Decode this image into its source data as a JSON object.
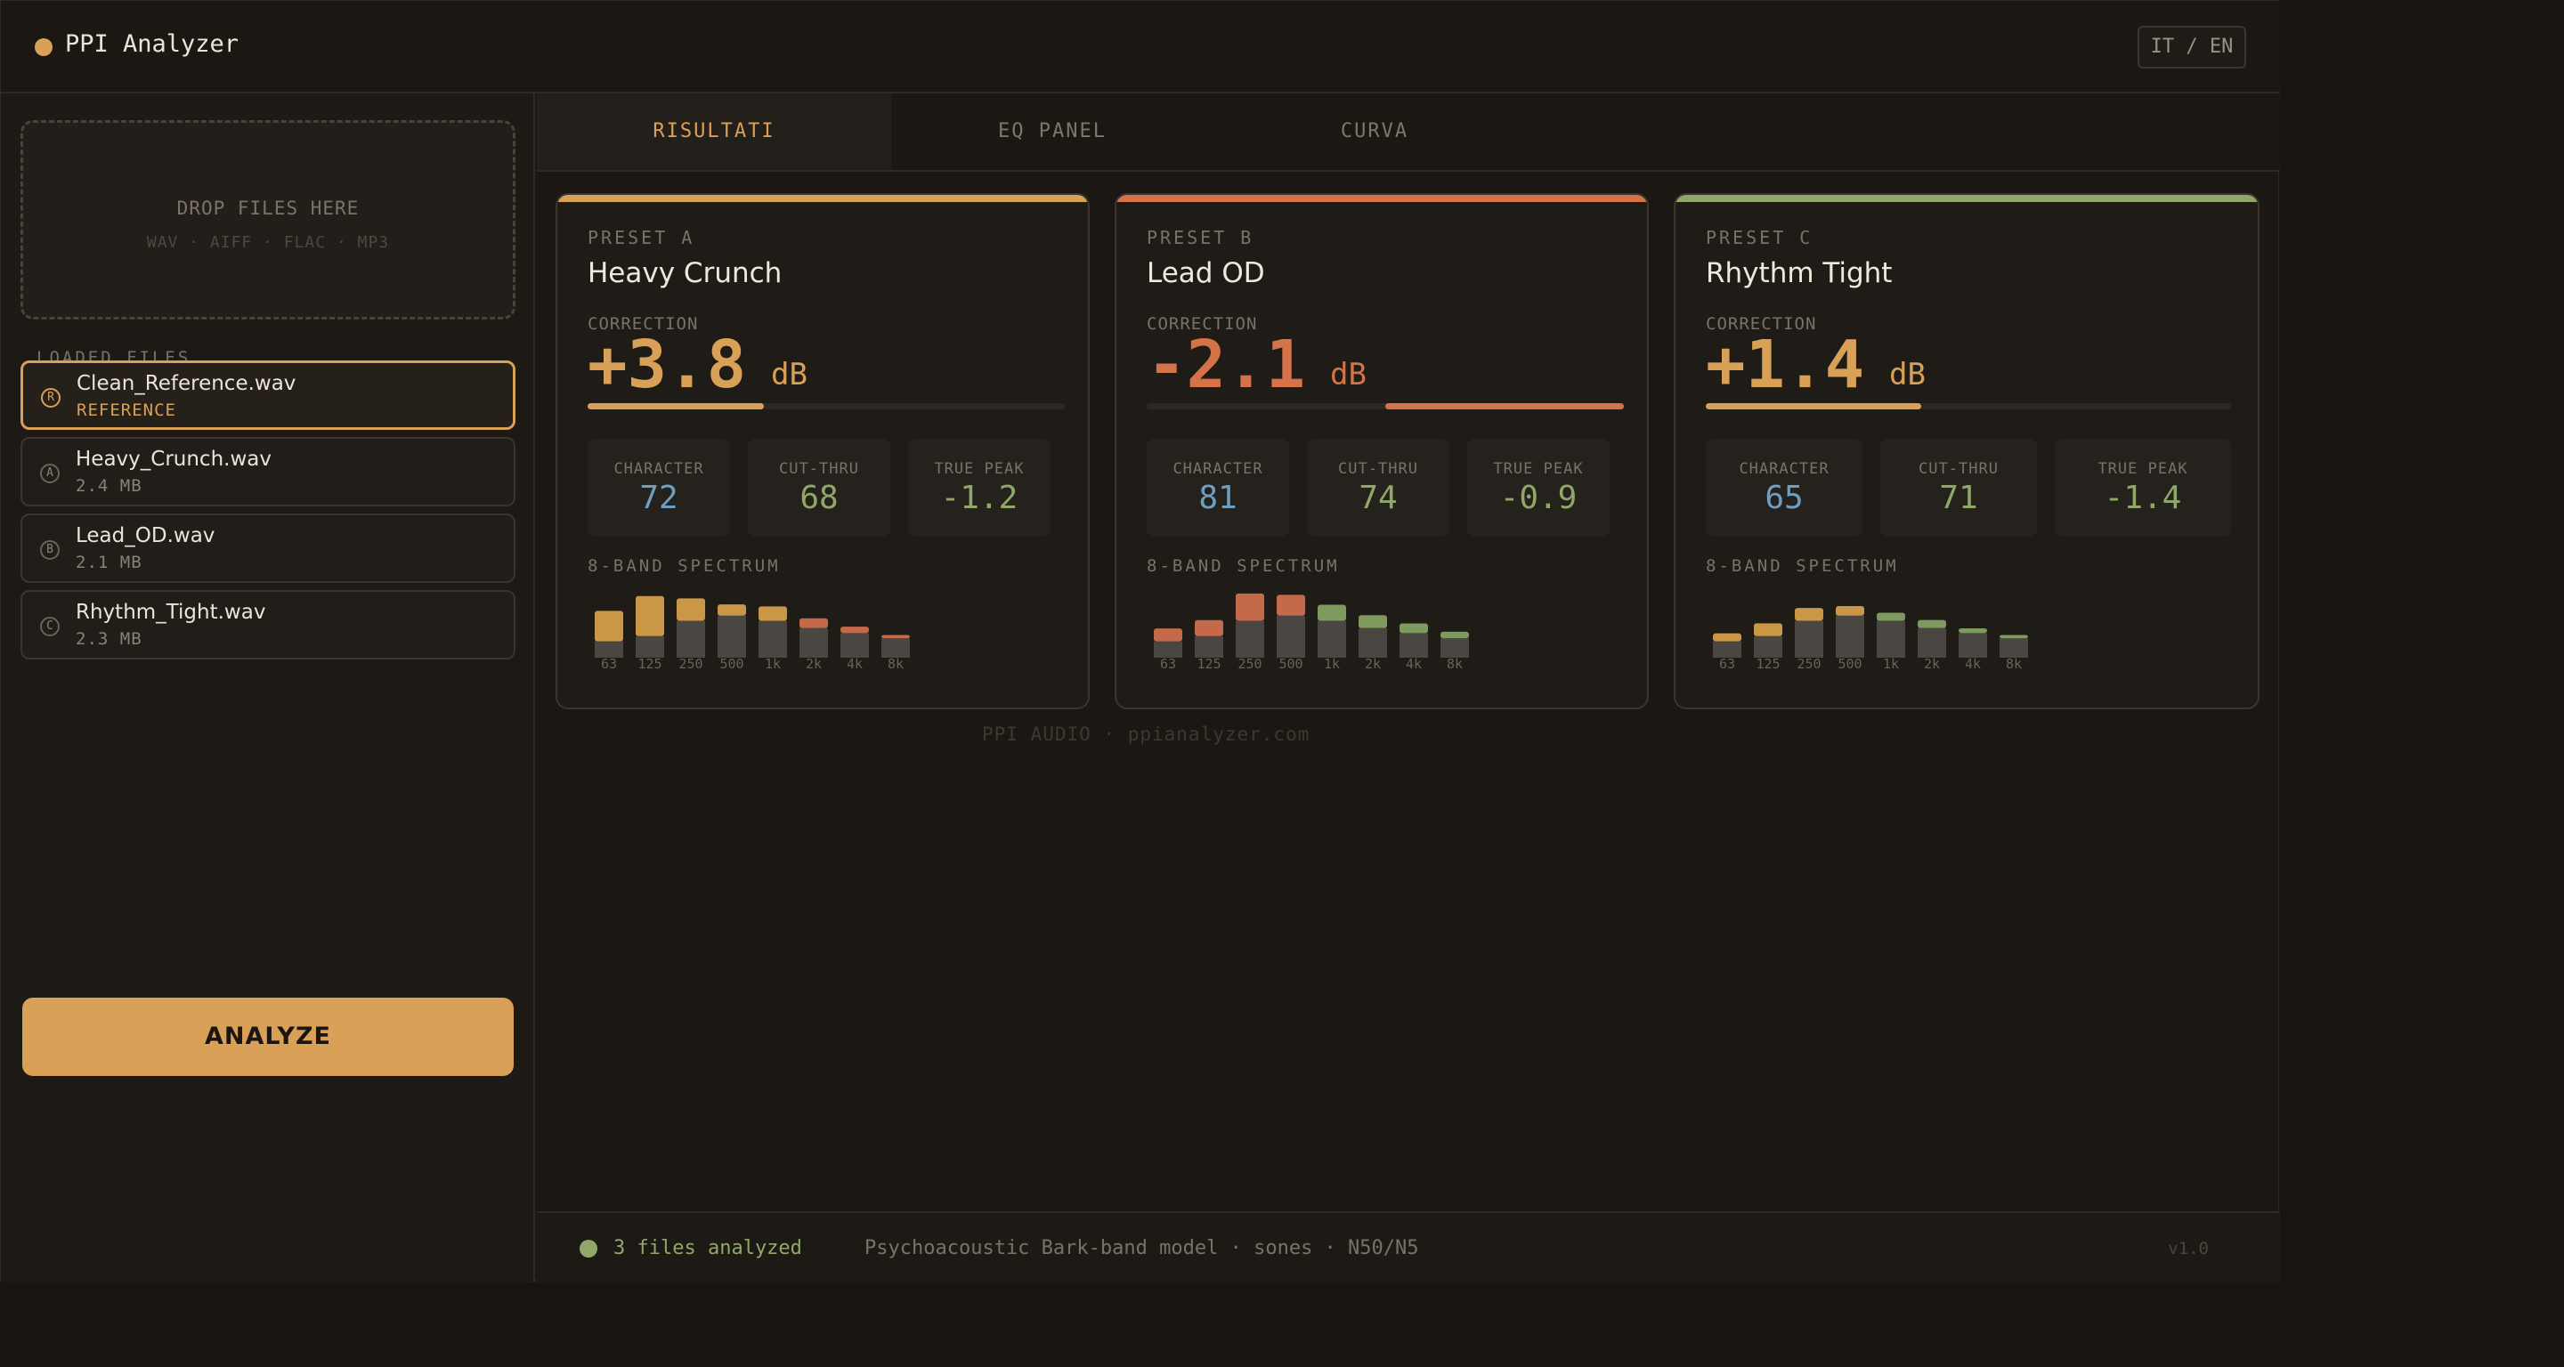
{
  "app": {
    "title": "PPI Analyzer",
    "lang_toggle": "IT / EN"
  },
  "sidebar": {
    "dropzone": {
      "title": "DROP FILES HERE",
      "formats": "WAV · AIFF · FLAC · MP3"
    },
    "loaded_label": "LOADED FILES",
    "files": [
      {
        "badge": "R",
        "name": "Clean_Reference.wav",
        "meta": "REFERENCE",
        "active": true
      },
      {
        "badge": "A",
        "name": "Heavy_Crunch.wav",
        "meta": "2.4 MB",
        "active": false
      },
      {
        "badge": "B",
        "name": "Lead_OD.wav",
        "meta": "2.1 MB",
        "active": false
      },
      {
        "badge": "C",
        "name": "Rhythm_Tight.wav",
        "meta": "2.3 MB",
        "active": false
      }
    ],
    "analyze_label": "ANALYZE"
  },
  "tabs": [
    {
      "label": "RISULTATI",
      "active": true
    },
    {
      "label": "EQ PANEL",
      "active": false
    },
    {
      "label": "CURVA",
      "active": false
    }
  ],
  "colors": {
    "accent": "#d9a057",
    "negative": "#d4724a",
    "positive": "#8fa86a",
    "character": "#6f9fc0",
    "spectrum_base": "#4a4743"
  },
  "cards": [
    {
      "preset_label": "PRESET A",
      "name": "Heavy Crunch",
      "bar_color": "#d9a057",
      "correction_label": "CORRECTION",
      "correction_value": "+3.8",
      "correction_unit": "dB",
      "correction_color": "#d9a057",
      "meter_fraction": 0.37,
      "meter_side": "left",
      "metrics": [
        {
          "label": "CHARACTER",
          "value": "72"
        },
        {
          "label": "CUT-THRU",
          "value": "68"
        },
        {
          "label": "TRUE PEAK",
          "value": "-1.2"
        }
      ],
      "spectrum_label": "8-BAND SPECTRUM",
      "bands": [
        "63",
        "125",
        "250",
        "500",
        "1k",
        "2k",
        "4k",
        "8k"
      ],
      "base_levels": [
        0.32,
        0.42,
        0.72,
        0.82,
        0.72,
        0.58,
        0.48,
        0.38
      ],
      "deltas": [
        0.38,
        0.5,
        0.28,
        0.14,
        0.18,
        0.12,
        0.08,
        0.04
      ],
      "delta_colors": [
        "#c99746",
        "#c99746",
        "#c99746",
        "#c99746",
        "#c99746",
        "#c46a4a",
        "#c46a4a",
        "#c46a4a"
      ]
    },
    {
      "preset_label": "PRESET B",
      "name": "Lead OD",
      "bar_color": "#d4724a",
      "correction_label": "CORRECTION",
      "correction_value": "-2.1",
      "correction_unit": "dB",
      "correction_color": "#d4724a",
      "meter_fraction": 0.5,
      "meter_side": "right",
      "metrics": [
        {
          "label": "CHARACTER",
          "value": "81"
        },
        {
          "label": "CUT-THRU",
          "value": "74"
        },
        {
          "label": "TRUE PEAK",
          "value": "-0.9"
        }
      ],
      "spectrum_label": "8-BAND SPECTRUM",
      "bands": [
        "63",
        "125",
        "250",
        "500",
        "1k",
        "2k",
        "4k",
        "8k"
      ],
      "base_levels": [
        0.32,
        0.42,
        0.72,
        0.82,
        0.72,
        0.58,
        0.48,
        0.38
      ],
      "deltas": [
        0.16,
        0.2,
        0.34,
        0.26,
        0.2,
        0.16,
        0.12,
        0.08
      ],
      "delta_colors": [
        "#c46a4a",
        "#c46a4a",
        "#c46a4a",
        "#c46a4a",
        "#7e9a5e",
        "#7e9a5e",
        "#7e9a5e",
        "#7e9a5e"
      ]
    },
    {
      "preset_label": "PRESET C",
      "name": "Rhythm Tight",
      "bar_color": "#8fa86a",
      "correction_label": "CORRECTION",
      "correction_value": "+1.4",
      "correction_unit": "dB",
      "correction_color": "#d9a057",
      "meter_fraction": 0.41,
      "meter_side": "left",
      "metrics": [
        {
          "label": "CHARACTER",
          "value": "65"
        },
        {
          "label": "CUT-THRU",
          "value": "71"
        },
        {
          "label": "TRUE PEAK",
          "value": "-1.4"
        }
      ],
      "spectrum_label": "8-BAND SPECTRUM",
      "bands": [
        "63",
        "125",
        "250",
        "500",
        "1k",
        "2k",
        "4k",
        "8k"
      ],
      "base_levels": [
        0.32,
        0.42,
        0.72,
        0.82,
        0.72,
        0.58,
        0.48,
        0.38
      ],
      "deltas": [
        0.1,
        0.16,
        0.16,
        0.12,
        0.1,
        0.1,
        0.06,
        0.04
      ],
      "delta_colors": [
        "#c99746",
        "#c99746",
        "#c99746",
        "#c99746",
        "#7e9a5e",
        "#7e9a5e",
        "#7e9a5e",
        "#7e9a5e"
      ]
    }
  ],
  "footer": {
    "brand": "PPI AUDIO · ppianalyzer.com"
  },
  "status": {
    "files_analyzed": "3 files analyzed",
    "model": "Psychoacoustic Bark-band model · sones · N50/N5",
    "version": "v1.0"
  }
}
